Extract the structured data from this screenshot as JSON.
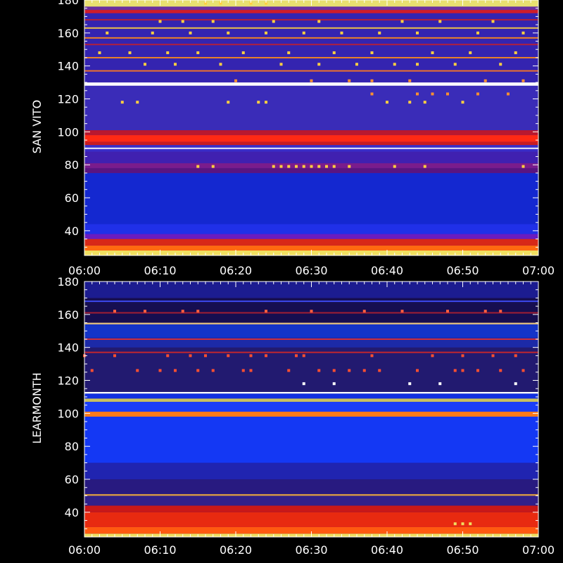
{
  "chart_data": [
    {
      "type": "heatmap",
      "ylabel": "SAN VITO",
      "x_tick_labels": [
        "06:00",
        "06:10",
        "06:20",
        "06:30",
        "06:40",
        "06:50",
        "07:00"
      ],
      "xlim": [
        "06:00",
        "07:00"
      ],
      "y_ticks": [
        40,
        60,
        80,
        100,
        120,
        140,
        160,
        180
      ],
      "ylim": [
        25,
        180
      ],
      "colors": {
        "background": "#000000",
        "frame": "#ffffff",
        "low": "#1020e0",
        "mid": "#3a28b0",
        "high_red": "#e83010",
        "high_orange": "#ff8c1a",
        "saturated": "#f0e060"
      },
      "bands": [
        {
          "from": 25,
          "to": 28,
          "color": "#f0e060"
        },
        {
          "from": 28,
          "to": 31,
          "color": "#ff6a10"
        },
        {
          "from": 31,
          "to": 35,
          "color": "#d82818"
        },
        {
          "from": 35,
          "to": 38,
          "color": "#6a1cc0"
        },
        {
          "from": 38,
          "to": 44,
          "color": "#2030e8"
        },
        {
          "from": 44,
          "to": 75,
          "color": "#1428d0"
        },
        {
          "from": 75,
          "to": 78,
          "color": "#5a1480"
        },
        {
          "from": 78,
          "to": 81,
          "color": "#7a1c8c"
        },
        {
          "from": 81,
          "to": 88,
          "color": "#4020b0"
        },
        {
          "from": 88,
          "to": 92,
          "color": "#3a2ec8"
        },
        {
          "from": 92,
          "to": 94,
          "color": "#c81c20"
        },
        {
          "from": 94,
          "to": 98,
          "color": "#ff2a14"
        },
        {
          "from": 98,
          "to": 101,
          "color": "#b81830"
        },
        {
          "from": 101,
          "to": 128,
          "color": "#3a2cb8"
        },
        {
          "from": 128,
          "to": 130,
          "color": "#ffffff"
        },
        {
          "from": 130,
          "to": 172,
          "color": "#3424b0"
        },
        {
          "from": 172,
          "to": 174,
          "color": "#d01c28"
        },
        {
          "from": 174,
          "to": 176,
          "color": "#6a30a0"
        },
        {
          "from": 176,
          "to": 180,
          "color": "#e8e070"
        }
      ],
      "lines": [
        {
          "freq": 90,
          "color": "#ffffff"
        },
        {
          "freq": 137,
          "color": "#ff7a20"
        },
        {
          "freq": 145,
          "color": "#ff8c1a"
        },
        {
          "freq": 153,
          "color": "#c02030"
        },
        {
          "freq": 157,
          "color": "#ff8c1a"
        },
        {
          "freq": 163,
          "color": "#ffd040"
        },
        {
          "freq": 168,
          "color": "#c02030"
        }
      ],
      "bursts": [
        {
          "freq": 79,
          "color": "#ffd040",
          "times": [
            "06:15",
            "06:17",
            "06:25",
            "06:26",
            "06:27",
            "06:28",
            "06:29",
            "06:30",
            "06:31",
            "06:32",
            "06:33",
            "06:35",
            "06:41",
            "06:45",
            "06:58"
          ]
        },
        {
          "freq": 118,
          "color": "#ffd040",
          "times": [
            "06:05",
            "06:07",
            "06:19",
            "06:23",
            "06:24",
            "06:40",
            "06:43",
            "06:45",
            "06:50"
          ]
        },
        {
          "freq": 123,
          "color": "#ff9030",
          "times": [
            "06:38",
            "06:44",
            "06:46",
            "06:48",
            "06:52",
            "06:56"
          ]
        },
        {
          "freq": 131,
          "color": "#ff9030",
          "times": [
            "06:20",
            "06:30",
            "06:35",
            "06:38",
            "06:43",
            "06:53",
            "06:58"
          ]
        },
        {
          "freq": 141,
          "color": "#ffd040",
          "times": [
            "06:08",
            "06:12",
            "06:18",
            "06:26",
            "06:31",
            "06:36",
            "06:41",
            "06:44",
            "06:49",
            "06:55"
          ]
        },
        {
          "freq": 148,
          "color": "#ffd040",
          "times": [
            "06:02",
            "06:06",
            "06:11",
            "06:15",
            "06:21",
            "06:27",
            "06:33",
            "06:38",
            "06:46",
            "06:51",
            "06:57"
          ]
        },
        {
          "freq": 160,
          "color": "#ffd040",
          "times": [
            "06:03",
            "06:09",
            "06:14",
            "06:19",
            "06:24",
            "06:29",
            "06:34",
            "06:39",
            "06:44",
            "06:52",
            "06:58"
          ]
        },
        {
          "freq": 167,
          "color": "#ffd040",
          "times": [
            "06:10",
            "06:13",
            "06:17",
            "06:25",
            "06:31",
            "06:42",
            "06:47",
            "06:54"
          ]
        },
        {
          "freq": 178,
          "color": "#ffd040",
          "times": [
            "06:16",
            "06:18",
            "06:22",
            "06:24"
          ]
        }
      ]
    },
    {
      "type": "heatmap",
      "ylabel": "LEARMONTH",
      "x_tick_labels": [
        "06:00",
        "06:10",
        "06:20",
        "06:30",
        "06:40",
        "06:50",
        "07:00"
      ],
      "xlim": [
        "06:00",
        "07:00"
      ],
      "y_ticks": [
        40,
        60,
        80,
        100,
        120,
        140,
        160,
        180
      ],
      "ylim": [
        25,
        180
      ],
      "colors": {
        "background": "#000000",
        "frame": "#ffffff",
        "low": "#1030f0",
        "mid": "#2a1c90",
        "high_red": "#e83010",
        "high_orange": "#ff8c1a",
        "saturated": "#f0e060"
      },
      "bands": [
        {
          "from": 25,
          "to": 27,
          "color": "#f0e060"
        },
        {
          "from": 27,
          "to": 31,
          "color": "#ff5a10"
        },
        {
          "from": 31,
          "to": 40,
          "color": "#e82a10"
        },
        {
          "from": 40,
          "to": 44,
          "color": "#c81818"
        },
        {
          "from": 44,
          "to": 50,
          "color": "#30208a"
        },
        {
          "from": 50,
          "to": 51,
          "color": "#e0a040"
        },
        {
          "from": 51,
          "to": 60,
          "color": "#281a80"
        },
        {
          "from": 60,
          "to": 70,
          "color": "#2024b0"
        },
        {
          "from": 70,
          "to": 98,
          "color": "#1438f4"
        },
        {
          "from": 98,
          "to": 101,
          "color": "#ff7a1a"
        },
        {
          "from": 101,
          "to": 107,
          "color": "#1a3ef8"
        },
        {
          "from": 107,
          "to": 109,
          "color": "#c8c060"
        },
        {
          "from": 109,
          "to": 112,
          "color": "#1230e0"
        },
        {
          "from": 112,
          "to": 113,
          "color": "#ffffff"
        },
        {
          "from": 113,
          "to": 140,
          "color": "#221a70"
        },
        {
          "from": 140,
          "to": 146,
          "color": "#1c2aa8"
        },
        {
          "from": 146,
          "to": 154,
          "color": "#1434c8"
        },
        {
          "from": 154,
          "to": 155,
          "color": "#e0c080"
        },
        {
          "from": 155,
          "to": 170,
          "color": "#160e50"
        },
        {
          "from": 170,
          "to": 180,
          "color": "#1c1c90"
        }
      ],
      "lines": [
        {
          "freq": 137,
          "color": "#d02828"
        },
        {
          "freq": 145,
          "color": "#e03030"
        },
        {
          "freq": 161,
          "color": "#b02030"
        },
        {
          "freq": 168,
          "color": "#4050ff"
        }
      ],
      "bursts": [
        {
          "freq": 118,
          "color": "#ffffff",
          "times": [
            "06:29",
            "06:33",
            "06:43",
            "06:47",
            "06:57"
          ]
        },
        {
          "freq": 126,
          "color": "#ff5030",
          "times": [
            "06:01",
            "06:07",
            "06:10",
            "06:12",
            "06:15",
            "06:17",
            "06:21",
            "06:22",
            "06:27",
            "06:31",
            "06:33",
            "06:35",
            "06:37",
            "06:39",
            "06:44",
            "06:49",
            "06:50",
            "06:52",
            "06:55",
            "06:58"
          ]
        },
        {
          "freq": 135,
          "color": "#ff5030",
          "times": [
            "06:00",
            "06:04",
            "06:11",
            "06:14",
            "06:16",
            "06:19",
            "06:22",
            "06:24",
            "06:28",
            "06:29",
            "06:38",
            "06:46",
            "06:50",
            "06:54",
            "06:57"
          ]
        },
        {
          "freq": 162,
          "color": "#ff6040",
          "times": [
            "06:04",
            "06:08",
            "06:13",
            "06:15",
            "06:24",
            "06:30",
            "06:37",
            "06:42",
            "06:48",
            "06:53",
            "06:55"
          ]
        },
        {
          "freq": 33,
          "color": "#f0e060",
          "times": [
            "06:49",
            "06:50",
            "06:51"
          ]
        }
      ]
    }
  ]
}
